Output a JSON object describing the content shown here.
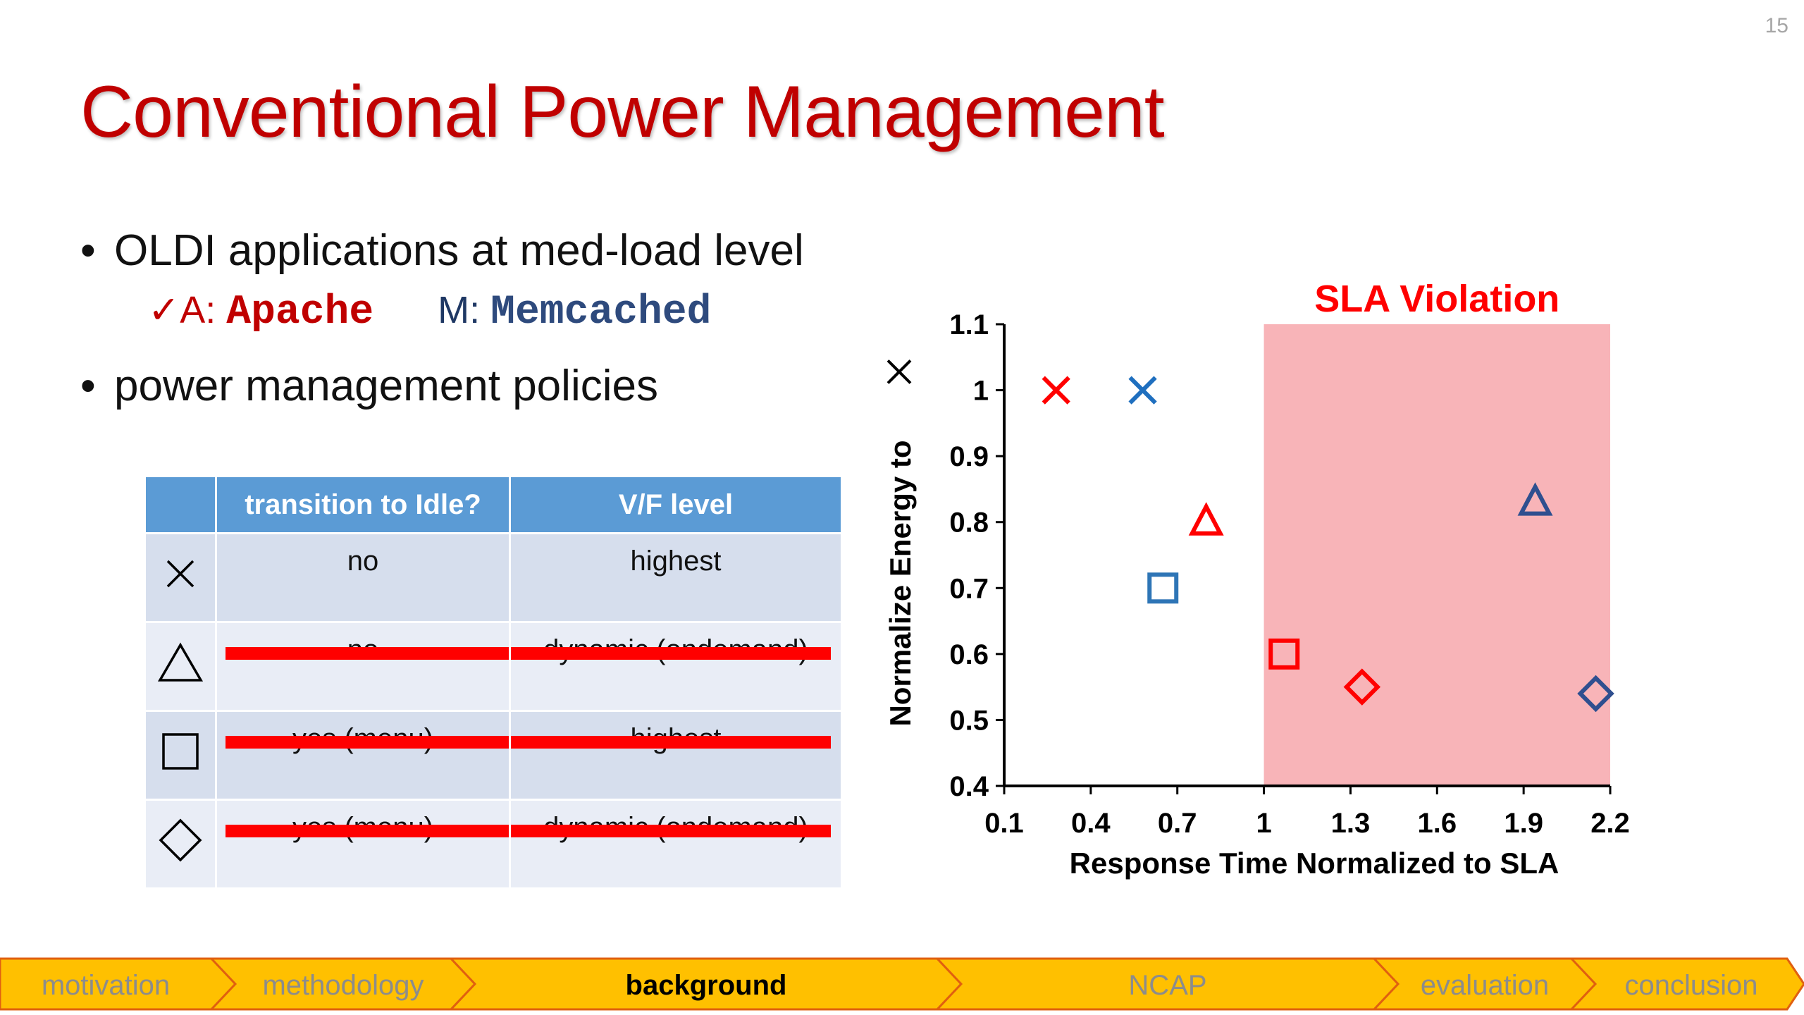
{
  "slide": {
    "page_number": "15",
    "title": "Conventional Power Management",
    "bullets": [
      "OLDI applications at med-load level",
      "power management policies"
    ],
    "apps": {
      "check": "✓",
      "a_prefix": "A:",
      "a_name": "Apache",
      "m_prefix": "M:",
      "m_name": "Memcached"
    }
  },
  "policy_table": {
    "headers": [
      "",
      "transition to Idle?",
      "V/F level"
    ],
    "rows": [
      {
        "symbol": "cross-icon",
        "idle": "no",
        "vf": "highest",
        "struck": false
      },
      {
        "symbol": "triangle-icon",
        "idle": "no",
        "vf": "dynamic (ondemand)",
        "struck": true
      },
      {
        "symbol": "square-icon",
        "idle": "yes (menu)",
        "vf": "highest",
        "struck": true
      },
      {
        "symbol": "diamond-icon",
        "idle": "yes (menu)",
        "vf": "dynamic (ondemand)",
        "struck": true
      }
    ]
  },
  "chart_data": {
    "type": "scatter",
    "xlabel": "Response Time Normalized to SLA",
    "ylabel": "Normalize Energy to",
    "ylabel_symbol": "cross-icon",
    "xlim": [
      0.1,
      2.2
    ],
    "ylim": [
      0.4,
      1.1
    ],
    "xticks": [
      "0.1",
      "0.4",
      "0.7",
      "1",
      "1.3",
      "1.6",
      "1.9",
      "2.2"
    ],
    "yticks": [
      "0.4",
      "0.5",
      "0.6",
      "0.7",
      "0.8",
      "0.9",
      "1",
      "1.1"
    ],
    "region": {
      "label": "SLA Violation",
      "x_from": 1.0,
      "x_to": 2.2,
      "color": "#f8b4b8"
    },
    "colors": {
      "apache": "#ff0000",
      "memcached_cross": "#1f6fbf",
      "memcached_square": "#2e75b6",
      "memcached_other": "#2f4f8f"
    },
    "points": [
      {
        "marker": "cross",
        "app": "A",
        "x": 0.28,
        "y": 1.0
      },
      {
        "marker": "cross",
        "app": "M",
        "x": 0.58,
        "y": 1.0
      },
      {
        "marker": "triangle",
        "app": "A",
        "x": 0.8,
        "y": 0.8
      },
      {
        "marker": "square",
        "app": "M",
        "x": 0.65,
        "y": 0.7
      },
      {
        "marker": "square",
        "app": "A",
        "x": 1.07,
        "y": 0.6
      },
      {
        "marker": "diamond",
        "app": "A",
        "x": 1.34,
        "y": 0.55
      },
      {
        "marker": "triangle",
        "app": "M",
        "x": 1.94,
        "y": 0.83
      },
      {
        "marker": "diamond",
        "app": "M",
        "x": 2.15,
        "y": 0.54
      }
    ]
  },
  "footer": {
    "items": [
      {
        "label": "motivation",
        "active": false
      },
      {
        "label": "methodology",
        "active": false
      },
      {
        "label": "background",
        "active": true
      },
      {
        "label": "NCAP",
        "active": false
      },
      {
        "label": "evaluation",
        "active": false
      },
      {
        "label": "conclusion",
        "active": false
      }
    ],
    "fill": "#ffc000",
    "edge": "#e06010",
    "text_color": "#8c8c8c",
    "active_text_color": "#000000"
  }
}
